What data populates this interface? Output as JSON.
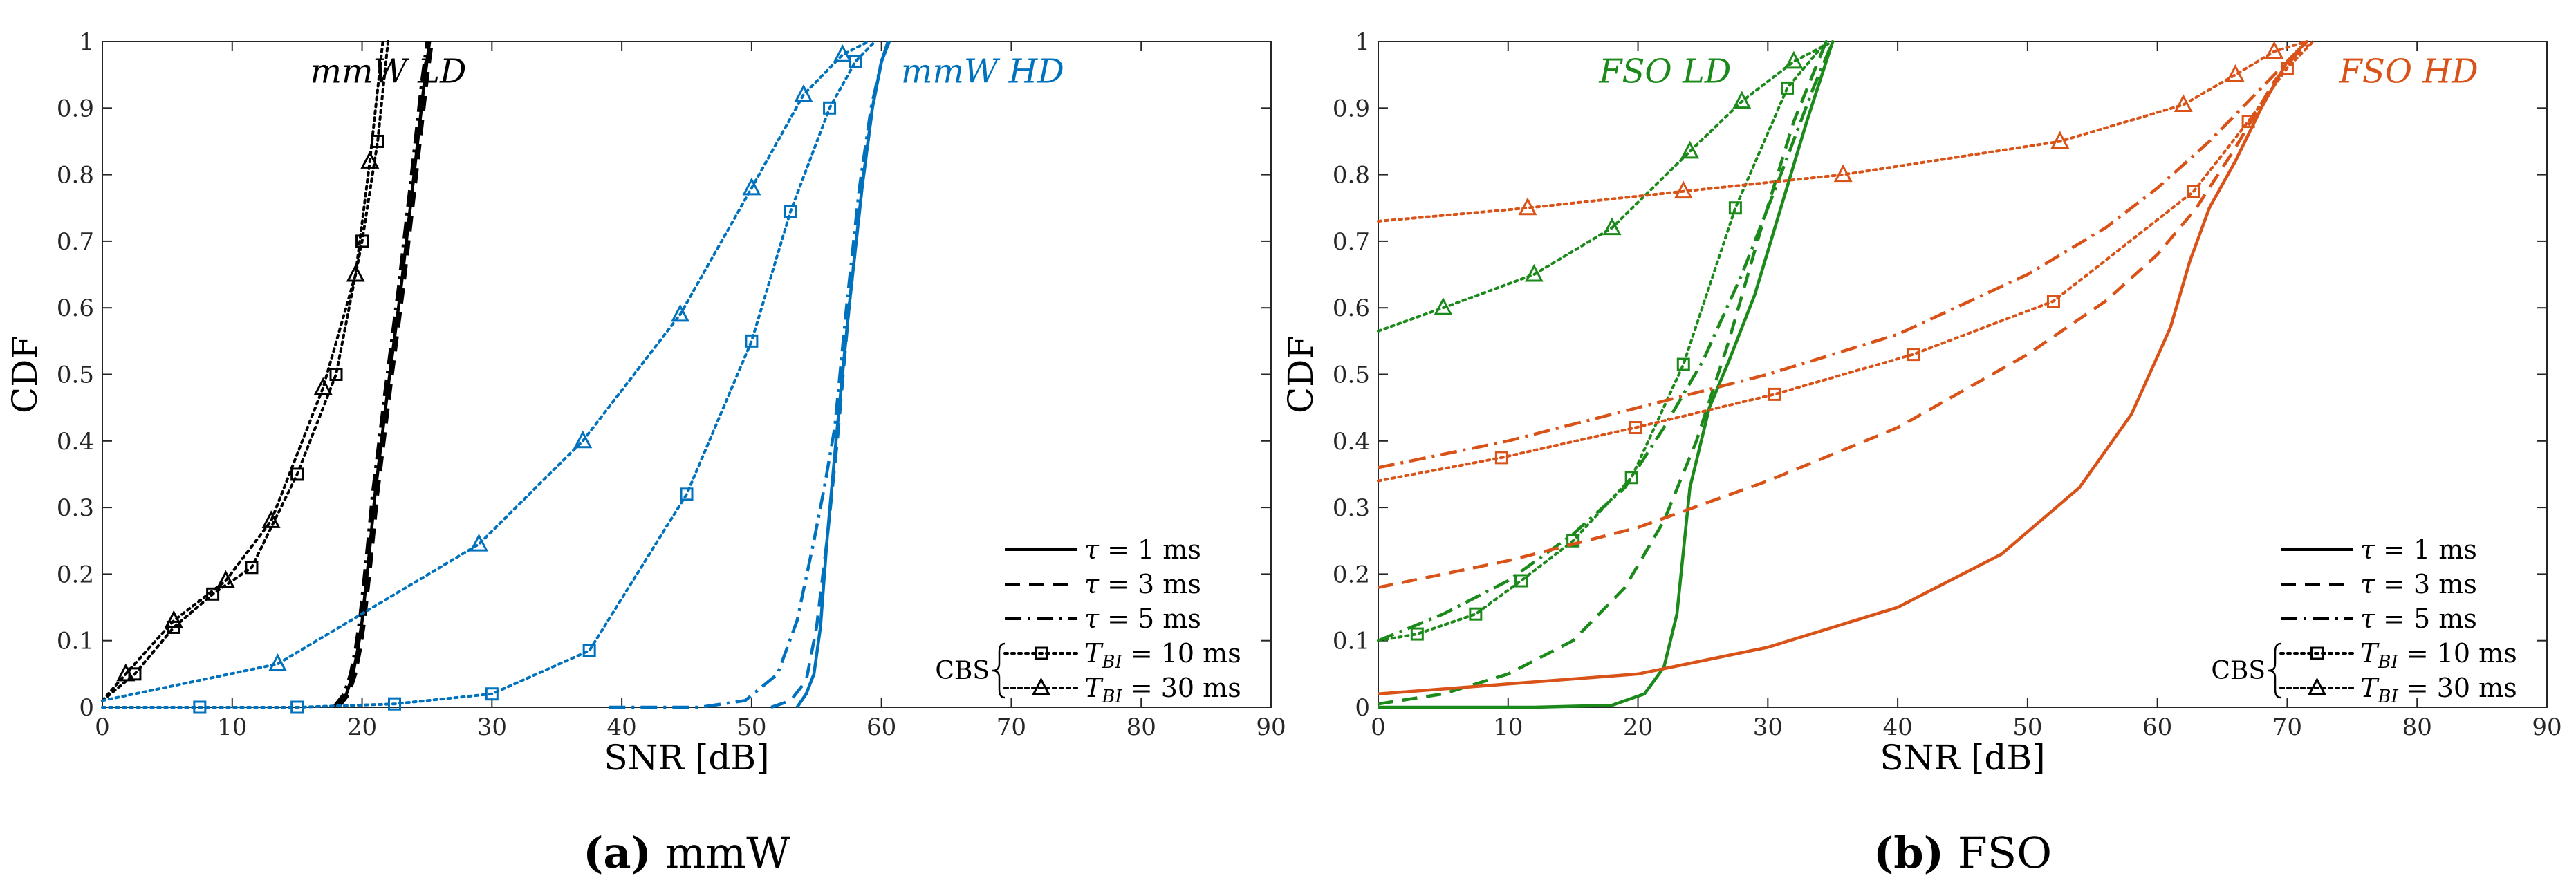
{
  "colors": {
    "black": "#000000",
    "mmw_hd": "#0072BD",
    "fso_ld": "#1B8A1B",
    "fso_hd": "#D95319"
  },
  "chart_data": [
    {
      "id": "a",
      "type": "line",
      "caption_label": "(a)",
      "caption_text": "mmW",
      "xlabel": "SNR [dB]",
      "ylabel": "CDF",
      "xlim": [
        0,
        90
      ],
      "ylim": [
        0,
        1
      ],
      "x_ticks": [
        "0",
        "10",
        "20",
        "30",
        "40",
        "50",
        "60",
        "70",
        "80",
        "90"
      ],
      "y_ticks": [
        "0",
        "0.1",
        "0.2",
        "0.3",
        "0.4",
        "0.5",
        "0.6",
        "0.7",
        "0.8",
        "0.9",
        "1"
      ],
      "annotations": [
        {
          "text": "mmW LD",
          "color": "black",
          "x": 16,
          "y": 0.955
        },
        {
          "text": "mmW HD",
          "color": "mmw_hd",
          "x": 61.5,
          "y": 0.955
        }
      ],
      "legend": {
        "position": "bottom-right",
        "bracket_label": "CBS",
        "entries": [
          {
            "style": "solid",
            "marker": "none",
            "label": "τ = 1 ms"
          },
          {
            "style": "dashed",
            "marker": "none",
            "label": "τ = 3 ms"
          },
          {
            "style": "dashdot",
            "marker": "none",
            "label": "τ = 5 ms"
          },
          {
            "style": "dotted",
            "marker": "square",
            "label": "T_BI = 10 ms"
          },
          {
            "style": "dotted",
            "marker": "triangle",
            "label": "T_BI = 30 ms"
          }
        ]
      },
      "series": [
        {
          "name": "mmW LD τ = 1 ms",
          "color": "black",
          "style": "solid",
          "marker": "none",
          "x": [
            18,
            18.8,
            19.3,
            19.7,
            20.0,
            20.5,
            21.0,
            22.0,
            23.0,
            24.0,
            24.8,
            25.2
          ],
          "y": [
            0,
            0.02,
            0.05,
            0.09,
            0.13,
            0.22,
            0.32,
            0.48,
            0.63,
            0.8,
            0.94,
            1.0
          ]
        },
        {
          "name": "mmW LD τ = 3 ms",
          "color": "black",
          "style": "dashed",
          "marker": "none",
          "x": [
            18.2,
            19.0,
            19.5,
            19.9,
            20.2,
            20.7,
            21.2,
            22.2,
            23.2,
            24.2,
            25.0,
            25.4
          ],
          "y": [
            0,
            0.02,
            0.05,
            0.09,
            0.13,
            0.22,
            0.32,
            0.48,
            0.63,
            0.8,
            0.94,
            1.0
          ]
        },
        {
          "name": "mmW LD τ = 5 ms",
          "color": "black",
          "style": "dashdot",
          "marker": "none",
          "x": [
            17.8,
            18.6,
            19.1,
            19.5,
            19.8,
            20.3,
            20.8,
            21.8,
            22.8,
            23.8,
            24.6,
            25.0
          ],
          "y": [
            0,
            0.02,
            0.05,
            0.09,
            0.13,
            0.22,
            0.32,
            0.48,
            0.63,
            0.8,
            0.94,
            1.0
          ]
        },
        {
          "name": "mmW LD T_BI = 10 ms",
          "color": "black",
          "style": "dotted",
          "marker": "square",
          "marker_every": 1,
          "x": [
            0,
            2.5,
            5.5,
            8.5,
            11.5,
            15.0,
            18.0,
            20.0,
            21.2,
            22.0
          ],
          "y": [
            0.01,
            0.05,
            0.12,
            0.17,
            0.21,
            0.35,
            0.5,
            0.7,
            0.85,
            1.0
          ]
        },
        {
          "name": "mmW LD T_BI = 30 ms",
          "color": "black",
          "style": "dotted",
          "marker": "triangle",
          "marker_every": 1,
          "x": [
            0,
            1.8,
            5.5,
            9.5,
            13.0,
            17.0,
            19.5,
            20.6,
            21.6
          ],
          "y": [
            0.01,
            0.05,
            0.13,
            0.19,
            0.28,
            0.48,
            0.65,
            0.82,
            1.0
          ]
        },
        {
          "name": "mmW HD τ = 1 ms",
          "color": "mmw_hd",
          "style": "solid",
          "marker": "none",
          "x": [
            53.5,
            54.2,
            54.8,
            55.3,
            55.8,
            56.5,
            57.5,
            58.5,
            59.3,
            60.0,
            60.5
          ],
          "y": [
            0,
            0.02,
            0.05,
            0.12,
            0.25,
            0.4,
            0.6,
            0.78,
            0.9,
            0.97,
            1.0
          ]
        },
        {
          "name": "mmW HD τ = 3 ms",
          "color": "mmw_hd",
          "style": "dashed",
          "marker": "none",
          "x": [
            51.5,
            53.0,
            54.2,
            55.0,
            55.8,
            56.6,
            57.5,
            58.5,
            59.3,
            60.0,
            60.6
          ],
          "y": [
            0,
            0.01,
            0.04,
            0.12,
            0.25,
            0.4,
            0.6,
            0.78,
            0.9,
            0.97,
            1.0
          ]
        },
        {
          "name": "mmW HD τ = 5 ms",
          "color": "mmw_hd",
          "style": "dashdot",
          "marker": "none",
          "x": [
            39.0,
            46.0,
            49.5,
            52.0,
            53.5,
            54.8,
            55.6,
            56.4,
            57.3,
            58.3,
            59.2,
            60.0,
            60.6
          ],
          "y": [
            0,
            0,
            0.01,
            0.05,
            0.13,
            0.25,
            0.33,
            0.42,
            0.6,
            0.78,
            0.9,
            0.97,
            1.0
          ]
        },
        {
          "name": "mmW HD T_BI = 10 ms",
          "color": "mmw_hd",
          "style": "dotted",
          "marker": "square",
          "marker_every": 1,
          "x": [
            0,
            7.5,
            15.0,
            22.5,
            30.0,
            37.5,
            45.0,
            50.0,
            53.0,
            56.0,
            58.0,
            59.5
          ],
          "y": [
            0,
            0,
            0,
            0.005,
            0.02,
            0.085,
            0.32,
            0.55,
            0.745,
            0.9,
            0.97,
            1.0
          ]
        },
        {
          "name": "mmW HD T_BI = 30 ms",
          "color": "mmw_hd",
          "style": "dotted",
          "marker": "triangle",
          "marker_every": 1,
          "x": [
            0,
            13.5,
            29.0,
            37.0,
            44.5,
            50.0,
            54.0,
            57.0,
            59.0
          ],
          "y": [
            0.01,
            0.065,
            0.245,
            0.4,
            0.59,
            0.78,
            0.92,
            0.98,
            1.0
          ]
        }
      ]
    },
    {
      "id": "b",
      "type": "line",
      "caption_label": "(b)",
      "caption_text": "FSO",
      "xlabel": "SNR [dB]",
      "ylabel": "CDF",
      "xlim": [
        0,
        90
      ],
      "ylim": [
        0,
        1
      ],
      "x_ticks": [
        "0",
        "10",
        "20",
        "30",
        "40",
        "50",
        "60",
        "70",
        "80",
        "90"
      ],
      "y_ticks": [
        "0",
        "0.1",
        "0.2",
        "0.3",
        "0.4",
        "0.5",
        "0.6",
        "0.7",
        "0.8",
        "0.9",
        "1"
      ],
      "annotations": [
        {
          "text": "FSO LD",
          "color": "fso_ld",
          "x": 17,
          "y": 0.955
        },
        {
          "text": "FSO HD",
          "color": "fso_hd",
          "x": 74,
          "y": 0.955
        }
      ],
      "legend": {
        "position": "bottom-right",
        "bracket_label": "CBS",
        "entries": [
          {
            "style": "solid",
            "marker": "none",
            "label": "τ = 1 ms"
          },
          {
            "style": "dashed",
            "marker": "none",
            "label": "τ = 3 ms"
          },
          {
            "style": "dashdot",
            "marker": "none",
            "label": "τ = 5 ms"
          },
          {
            "style": "dotted",
            "marker": "square",
            "label": "T_BI = 10 ms"
          },
          {
            "style": "dotted",
            "marker": "triangle",
            "label": "T_BI = 30 ms"
          }
        ]
      },
      "series": [
        {
          "name": "FSO LD τ = 1 ms",
          "color": "fso_ld",
          "style": "solid",
          "marker": "none",
          "x": [
            0,
            12.0,
            18.0,
            20.5,
            22.0,
            23.0,
            24.0,
            25.5,
            27.0,
            29.0,
            31.0,
            33.0,
            35.0
          ],
          "y": [
            0,
            0,
            0.003,
            0.02,
            0.06,
            0.14,
            0.33,
            0.45,
            0.52,
            0.62,
            0.75,
            0.88,
            1.0
          ]
        },
        {
          "name": "FSO LD τ = 3 ms",
          "color": "fso_ld",
          "style": "dashed",
          "marker": "none",
          "x": [
            0,
            5.0,
            10.0,
            15.0,
            19.0,
            22.0,
            24.5,
            27.0,
            29.5,
            32.0,
            34.5
          ],
          "y": [
            0.005,
            0.02,
            0.05,
            0.1,
            0.18,
            0.28,
            0.4,
            0.55,
            0.72,
            0.88,
            1.0
          ]
        },
        {
          "name": "FSO LD τ = 5 ms",
          "color": "fso_ld",
          "style": "dashdot",
          "marker": "none",
          "x": [
            0,
            5.0,
            10.0,
            15.0,
            19.0,
            22.0,
            25.0,
            28.0,
            31.0,
            33.5,
            35.0
          ],
          "y": [
            0.1,
            0.14,
            0.19,
            0.26,
            0.33,
            0.42,
            0.52,
            0.65,
            0.8,
            0.93,
            1.0
          ]
        },
        {
          "name": "FSO LD T_BI = 10 ms",
          "color": "fso_ld",
          "style": "dotted",
          "marker": "square",
          "marker_every": 1,
          "x": [
            0,
            3.0,
            7.5,
            11.0,
            15.0,
            19.5,
            23.5,
            27.5,
            31.5,
            34.5
          ],
          "y": [
            0.1,
            0.11,
            0.14,
            0.19,
            0.25,
            0.345,
            0.515,
            0.75,
            0.93,
            1.0
          ]
        },
        {
          "name": "FSO LD T_BI = 30 ms",
          "color": "fso_ld",
          "style": "dotted",
          "marker": "triangle",
          "marker_every": 1,
          "x": [
            0,
            5.0,
            12.0,
            18.0,
            24.0,
            28.0,
            32.0,
            35.0
          ],
          "y": [
            0.565,
            0.6,
            0.65,
            0.72,
            0.835,
            0.91,
            0.97,
            1.0
          ]
        },
        {
          "name": "FSO HD τ = 1 ms",
          "color": "fso_hd",
          "style": "solid",
          "marker": "none",
          "x": [
            0,
            10.0,
            20.0,
            30.0,
            40.0,
            48.0,
            54.0,
            58.0,
            61.0,
            62.5,
            64.0,
            66.0,
            68.0,
            70.0,
            71.5
          ],
          "y": [
            0.02,
            0.035,
            0.05,
            0.09,
            0.15,
            0.23,
            0.33,
            0.44,
            0.57,
            0.67,
            0.75,
            0.82,
            0.9,
            0.97,
            1.0
          ]
        },
        {
          "name": "FSO HD τ = 3 ms",
          "color": "fso_hd",
          "style": "dashed",
          "marker": "none",
          "x": [
            0,
            10.0,
            20.0,
            30.0,
            40.0,
            50.0,
            56.0,
            60.0,
            63.0,
            66.0,
            69.0,
            71.5
          ],
          "y": [
            0.18,
            0.22,
            0.27,
            0.34,
            0.42,
            0.53,
            0.61,
            0.68,
            0.75,
            0.84,
            0.94,
            1.0
          ]
        },
        {
          "name": "FSO HD τ = 5 ms",
          "color": "fso_hd",
          "style": "dashdot",
          "marker": "none",
          "x": [
            0,
            10.0,
            20.0,
            30.0,
            40.0,
            50.0,
            56.0,
            60.0,
            64.0,
            67.0,
            70.0,
            72.0
          ],
          "y": [
            0.36,
            0.4,
            0.45,
            0.5,
            0.56,
            0.65,
            0.72,
            0.78,
            0.85,
            0.91,
            0.97,
            1.0
          ]
        },
        {
          "name": "FSO HD T_BI = 10 ms",
          "color": "fso_hd",
          "style": "dotted",
          "marker": "square",
          "marker_every": 1,
          "x": [
            0,
            9.5,
            19.8,
            30.5,
            41.2,
            52.0,
            62.8,
            67.0,
            70.0,
            72.0
          ],
          "y": [
            0.34,
            0.375,
            0.42,
            0.47,
            0.53,
            0.61,
            0.775,
            0.88,
            0.96,
            1.0
          ]
        },
        {
          "name": "FSO HD T_BI = 30 ms",
          "color": "fso_hd",
          "style": "dotted",
          "marker": "triangle",
          "marker_every": 1,
          "x": [
            0,
            11.5,
            23.5,
            35.8,
            52.5,
            62.0,
            66.0,
            69.0,
            71.5
          ],
          "y": [
            0.73,
            0.75,
            0.775,
            0.8,
            0.85,
            0.905,
            0.95,
            0.985,
            1.0
          ]
        }
      ]
    }
  ]
}
